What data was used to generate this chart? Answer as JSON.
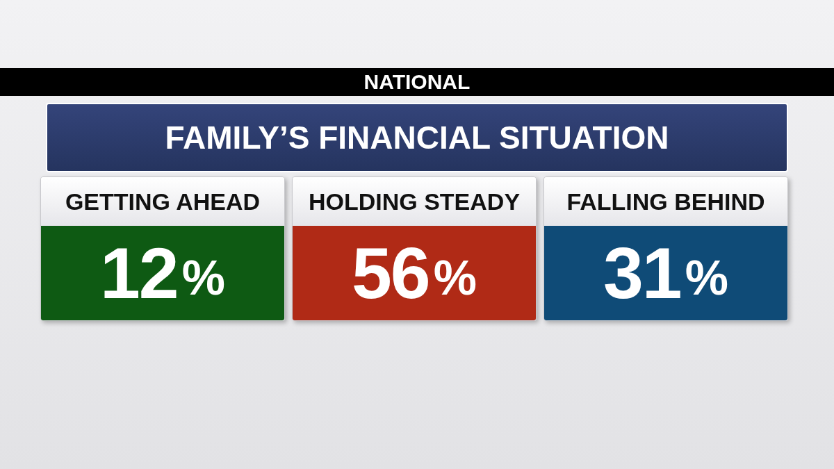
{
  "chart_data": {
    "type": "other",
    "title": "FAMILY’S FINANCIAL SITUATION",
    "subtitle": "NATIONAL",
    "categories": [
      "GETTING AHEAD",
      "HOLDING STEADY",
      "FALLING BEHIND"
    ],
    "values": [
      12,
      56,
      31
    ],
    "value_labels": [
      "12%",
      "56%",
      "31%"
    ],
    "colors": [
      "#0e5a13",
      "#b02a16",
      "#0f4b77"
    ]
  }
}
